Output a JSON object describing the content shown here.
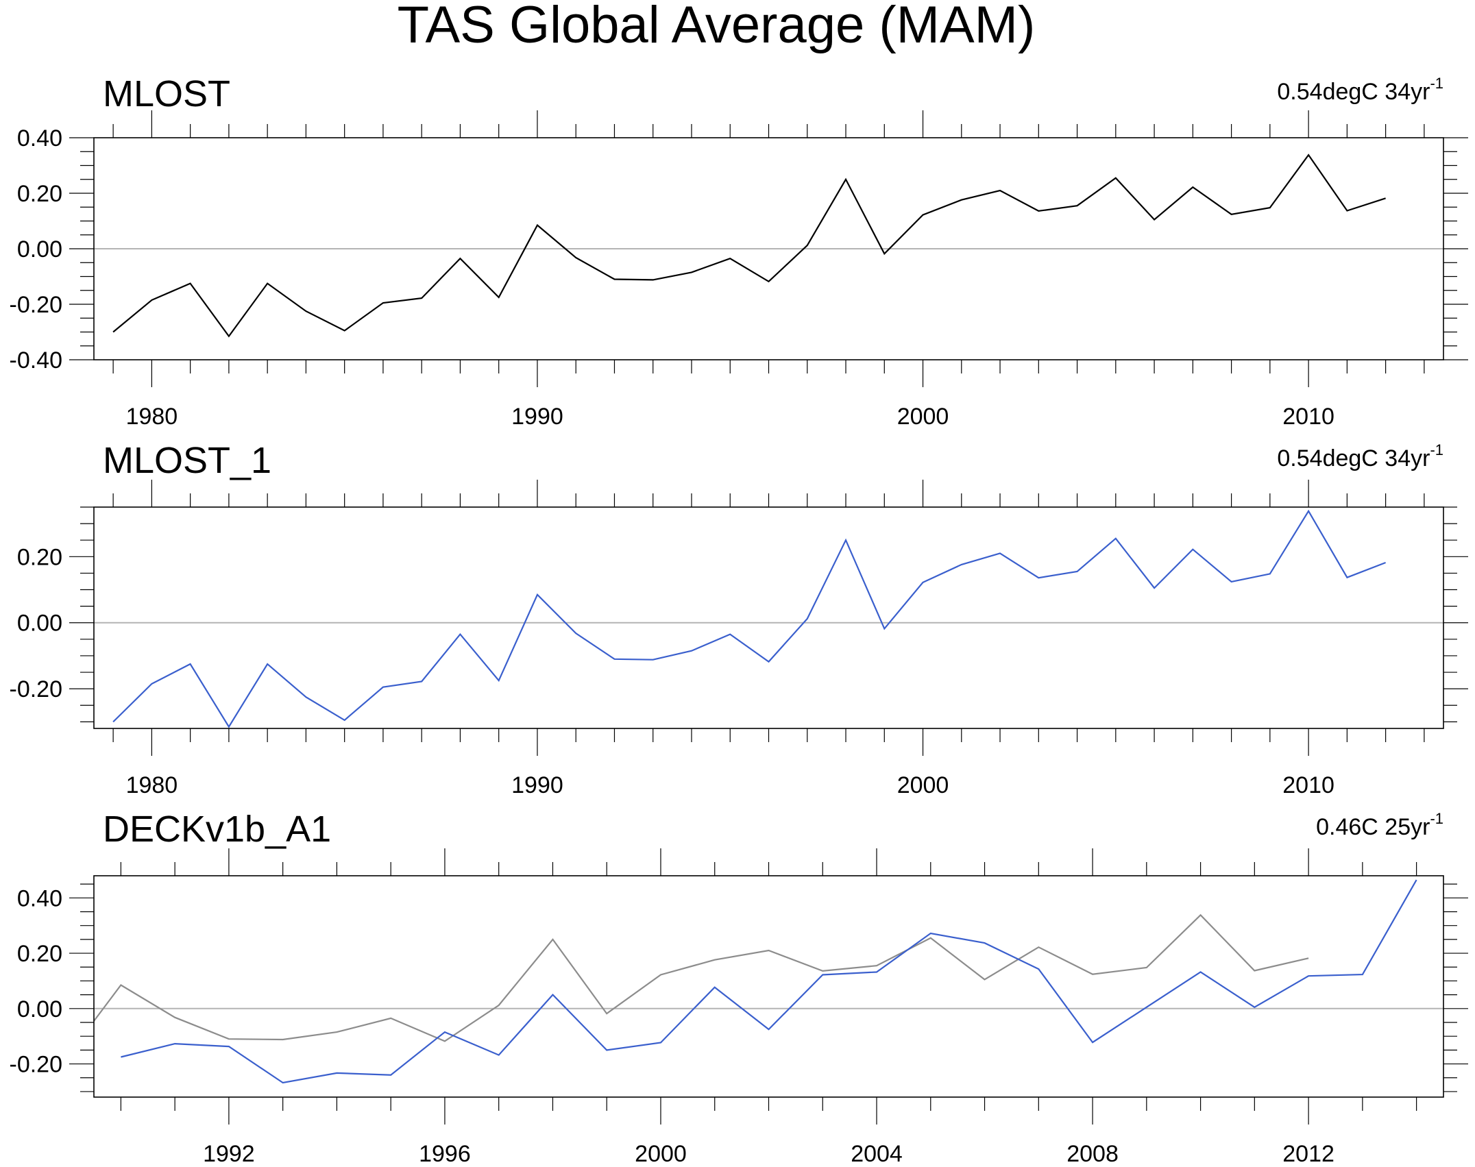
{
  "title": "TAS Global Average (MAM)",
  "chart_data": [
    {
      "type": "line",
      "title": "MLOST",
      "trend_text": "0.54degC 34yr",
      "trend_sup": "-1",
      "xlim": [
        1978.5,
        2013.5
      ],
      "ylim": [
        -0.4,
        0.4
      ],
      "x_ticks": [
        1980,
        1990,
        2000,
        2010
      ],
      "y_ticks": [
        -0.4,
        -0.2,
        0.0,
        0.2,
        0.4
      ],
      "y_tick_labels": [
        "-0.40",
        "-0.20",
        "0.00",
        "0.20",
        "0.40"
      ],
      "x_tick_labels": [
        "1980",
        "1990",
        "2000",
        "2010"
      ],
      "series": [
        {
          "name": "MLOST",
          "color": "#000000",
          "x": [
            1979,
            1980,
            1981,
            1982,
            1983,
            1984,
            1985,
            1986,
            1987,
            1988,
            1989,
            1990,
            1991,
            1992,
            1993,
            1994,
            1995,
            1996,
            1997,
            1998,
            1999,
            2000,
            2001,
            2002,
            2003,
            2004,
            2005,
            2006,
            2007,
            2008,
            2009,
            2010,
            2011,
            2012
          ],
          "values": [
            -0.3,
            -0.185,
            -0.125,
            -0.315,
            -0.125,
            -0.225,
            -0.295,
            -0.195,
            -0.178,
            -0.035,
            -0.175,
            0.085,
            -0.032,
            -0.11,
            -0.112,
            -0.085,
            -0.035,
            -0.118,
            0.012,
            0.25,
            -0.018,
            0.122,
            0.176,
            0.21,
            0.136,
            0.155,
            0.255,
            0.105,
            0.222,
            0.124,
            0.148,
            0.338,
            0.137,
            0.182
          ]
        }
      ]
    },
    {
      "type": "line",
      "title": "MLOST_1",
      "trend_text": "0.54degC 34yr",
      "trend_sup": "-1",
      "xlim": [
        1978.5,
        2013.5
      ],
      "ylim": [
        -0.32,
        0.35
      ],
      "x_ticks": [
        1980,
        1990,
        2000,
        2010
      ],
      "y_ticks": [
        -0.2,
        0.0,
        0.2
      ],
      "y_tick_labels": [
        "-0.20",
        "0.00",
        "0.20"
      ],
      "x_tick_labels": [
        "1980",
        "1990",
        "2000",
        "2010"
      ],
      "series": [
        {
          "name": "MLOST_1",
          "color": "#3a5fcd",
          "x": [
            1979,
            1980,
            1981,
            1982,
            1983,
            1984,
            1985,
            1986,
            1987,
            1988,
            1989,
            1990,
            1991,
            1992,
            1993,
            1994,
            1995,
            1996,
            1997,
            1998,
            1999,
            2000,
            2001,
            2002,
            2003,
            2004,
            2005,
            2006,
            2007,
            2008,
            2009,
            2010,
            2011,
            2012
          ],
          "values": [
            -0.3,
            -0.185,
            -0.125,
            -0.315,
            -0.125,
            -0.225,
            -0.295,
            -0.195,
            -0.178,
            -0.035,
            -0.175,
            0.085,
            -0.032,
            -0.11,
            -0.112,
            -0.085,
            -0.035,
            -0.118,
            0.012,
            0.25,
            -0.018,
            0.122,
            0.176,
            0.21,
            0.136,
            0.155,
            0.255,
            0.105,
            0.222,
            0.124,
            0.148,
            0.338,
            0.137,
            0.182
          ]
        }
      ]
    },
    {
      "type": "line",
      "title": "DECKv1b_A1",
      "trend_text": "0.46C 25yr",
      "trend_sup": "-1",
      "xlim": [
        1989.5,
        2014.5
      ],
      "ylim": [
        -0.32,
        0.48
      ],
      "x_ticks": [
        1992,
        1996,
        2000,
        2004,
        2008,
        2012
      ],
      "y_ticks": [
        -0.2,
        0.0,
        0.2,
        0.4
      ],
      "y_tick_labels": [
        "-0.20",
        "0.00",
        "0.20",
        "0.40"
      ],
      "x_tick_labels": [
        "1992",
        "1996",
        "2000",
        "2004",
        "2008",
        "2012"
      ],
      "series": [
        {
          "name": "DECKv1b_A1",
          "color": "#3a5fcd",
          "x": [
            1990,
            1991,
            1992,
            1993,
            1994,
            1995,
            1996,
            1997,
            1998,
            1999,
            2000,
            2001,
            2002,
            2003,
            2004,
            2005,
            2006,
            2007,
            2008,
            2009,
            2010,
            2011,
            2012,
            2013,
            2014
          ],
          "values": [
            -0.175,
            -0.127,
            -0.137,
            -0.268,
            -0.233,
            -0.24,
            -0.085,
            -0.168,
            0.05,
            -0.15,
            -0.123,
            0.077,
            -0.075,
            0.122,
            0.132,
            0.272,
            0.237,
            0.143,
            -0.122,
            0.005,
            0.132,
            0.005,
            0.118,
            0.123,
            0.465
          ]
        },
        {
          "name": "MLOST",
          "color": "#8c8c8c",
          "x": [
            1989.5,
            1990,
            1991,
            1992,
            1993,
            1994,
            1995,
            1996,
            1997,
            1998,
            1999,
            2000,
            2001,
            2002,
            2003,
            2004,
            2005,
            2006,
            2007,
            2008,
            2009,
            2010,
            2011,
            2012
          ],
          "values": [
            -0.045,
            0.085,
            -0.032,
            -0.11,
            -0.112,
            -0.085,
            -0.035,
            -0.118,
            0.012,
            0.25,
            -0.018,
            0.122,
            0.176,
            0.21,
            0.136,
            0.155,
            0.255,
            0.105,
            0.222,
            0.124,
            0.148,
            0.338,
            0.137,
            0.182
          ]
        }
      ]
    }
  ]
}
